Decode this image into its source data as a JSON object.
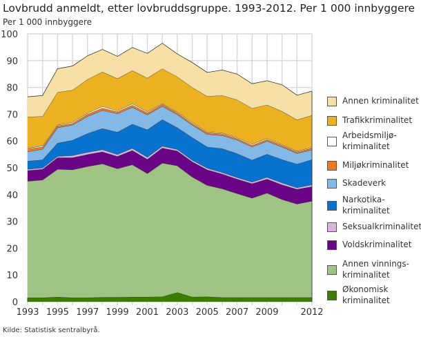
{
  "chart_data": {
    "type": "area",
    "stacked": true,
    "title": "Lovbrudd anmeldt, etter lovbruddsgruppe. 1993-2012. Per 1 000 innbyggere",
    "ylabel": "Per 1 000 innbyggere",
    "ylim": [
      0,
      100
    ],
    "yticks": [
      0,
      10,
      20,
      30,
      40,
      50,
      60,
      70,
      80,
      90,
      100
    ],
    "x": [
      1993,
      1994,
      1995,
      1996,
      1997,
      1998,
      1999,
      2000,
      2001,
      2002,
      2003,
      2004,
      2005,
      2006,
      2007,
      2008,
      2009,
      2010,
      2011,
      2012
    ],
    "xtick_labels": [
      "1993",
      "1995",
      "1997",
      "1999",
      "2001",
      "2003",
      "2005",
      "2007",
      "2009",
      "2012"
    ],
    "grid": true,
    "legend_placement": "right",
    "series": [
      {
        "name": "Økonomisk kriminalitet",
        "legend": [
          "Økonomisk",
          "kriminalitet"
        ],
        "color": "#3c7d00",
        "values": [
          1.5,
          1.5,
          1.8,
          1.5,
          1.5,
          1.7,
          1.7,
          1.8,
          1.8,
          1.9,
          3.5,
          1.8,
          1.9,
          1.6,
          1.6,
          1.6,
          1.6,
          1.6,
          1.6,
          1.6
        ]
      },
      {
        "name": "Annen vinningskriminalitet",
        "legend": [
          "Annen vinnings-",
          "kriminalitet"
        ],
        "color": "#9fc383",
        "values": [
          43.5,
          44.0,
          47.7,
          47.8,
          49.0,
          49.8,
          48.0,
          49.4,
          46.1,
          49.9,
          47.3,
          44.8,
          41.6,
          40.6,
          38.8,
          37.1,
          39.0,
          36.6,
          34.9,
          36.0
        ]
      },
      {
        "name": "Voldskriminalitet",
        "legend": [
          "Voldskriminalitet"
        ],
        "color": "#6a0587",
        "values": [
          4.0,
          4.0,
          4.3,
          4.5,
          4.5,
          4.5,
          4.6,
          5.3,
          5.3,
          5.6,
          5.5,
          5.7,
          5.8,
          5.5,
          5.4,
          5.4,
          5.2,
          5.5,
          5.5,
          5.4
        ]
      },
      {
        "name": "Seksualkriminalitet",
        "legend": [
          "Seksualkriminalitet"
        ],
        "color": "#d7b6de",
        "values": [
          0.5,
          0.5,
          0.5,
          0.8,
          0.8,
          0.8,
          0.7,
          0.8,
          0.8,
          0.7,
          0.6,
          0.6,
          0.6,
          0.6,
          0.6,
          0.6,
          0.7,
          0.7,
          0.6,
          0.7
        ]
      },
      {
        "name": "Narkotikakriminalitet",
        "legend": [
          "Narkotika-",
          "kriminalitet"
        ],
        "color": "#0773cf",
        "values": [
          3.0,
          3.0,
          4.9,
          5.7,
          7.0,
          7.9,
          8.3,
          9.0,
          10.2,
          9.9,
          8.1,
          8.4,
          7.9,
          8.9,
          8.9,
          8.2,
          8.6,
          8.7,
          8.8,
          9.4
        ]
      },
      {
        "name": "Skadeverk",
        "legend": [
          "Skadeverk"
        ],
        "color": "#84b8e6",
        "values": [
          3.5,
          4.0,
          5.8,
          5.7,
          6.4,
          6.8,
          6.9,
          6.3,
          5.6,
          5.0,
          4.9,
          4.7,
          4.7,
          4.9,
          5.1,
          4.9,
          4.9,
          4.7,
          4.0,
          3.6
        ]
      },
      {
        "name": "Miljøkriminalitet",
        "legend": [
          "Miljøkriminalitet"
        ],
        "color": "#f07b22",
        "values": [
          1.0,
          0.8,
          0.7,
          0.6,
          0.8,
          0.8,
          0.7,
          0.8,
          0.8,
          0.7,
          0.6,
          0.5,
          0.6,
          0.6,
          0.5,
          0.6,
          0.6,
          0.6,
          0.6,
          0.6
        ]
      },
      {
        "name": "Arbeidsmiljøkriminalitet",
        "legend": [
          "Arbeidsmiljø-",
          "kriminalitet"
        ],
        "color": "#ffffff",
        "values": [
          0.3,
          0.4,
          0.3,
          0.4,
          0.4,
          0.6,
          0.4,
          0.5,
          0.4,
          0.3,
          0.3,
          0.4,
          0.3,
          0.3,
          0.3,
          0.4,
          0.4,
          0.3,
          0.3,
          0.3
        ]
      },
      {
        "name": "Trafikkriminalitet",
        "legend": [
          "Trafikkriminalitet"
        ],
        "color": "#ebb121",
        "values": [
          11.7,
          11.0,
          12.2,
          12.0,
          12.6,
          12.9,
          12.0,
          12.4,
          12.5,
          13.0,
          13.2,
          13.1,
          13.3,
          14.0,
          14.2,
          13.4,
          12.5,
          12.4,
          11.6,
          12.0
        ]
      },
      {
        "name": "Annen kriminalitet",
        "legend": [
          "Annen kriminalitet"
        ],
        "color": "#f6e0a5",
        "values": [
          7.5,
          7.8,
          8.8,
          9.0,
          8.8,
          8.4,
          8.3,
          8.6,
          9.2,
          9.5,
          8.5,
          9.3,
          8.9,
          9.5,
          9.6,
          9.2,
          9.0,
          9.9,
          9.2,
          9.0
        ]
      }
    ]
  },
  "source": "Kilde: Statistisk sentralbyrå."
}
